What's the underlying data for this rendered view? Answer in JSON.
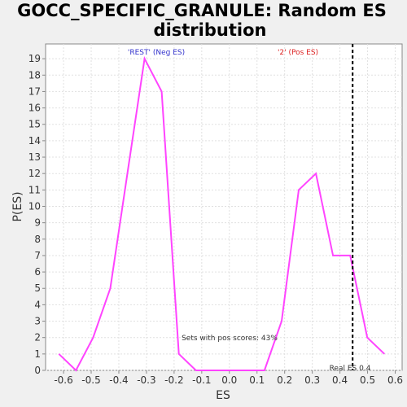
{
  "chart_data": {
    "type": "line",
    "title_lines": [
      "GOCC_SPECIFIC_GRANULE: Random ES",
      "distribution"
    ],
    "xlabel": "ES",
    "ylabel": "P(ES)",
    "xlim": [
      -0.665,
      0.625
    ],
    "ylim": [
      0,
      19.9
    ],
    "x_ticks": [
      -0.6,
      -0.5,
      -0.4,
      -0.3,
      -0.2,
      -0.1,
      0.0,
      0.1,
      0.2,
      0.3,
      0.4,
      0.5,
      0.6
    ],
    "x_tick_labels": [
      "-0.6",
      "-0.5",
      "-0.4",
      "-0.3",
      "-0.2",
      "-0.1",
      "0.0",
      "0.1",
      "0.2",
      "0.3",
      "0.4",
      "0.5",
      "0.6"
    ],
    "y_ticks": [
      0,
      1,
      2,
      3,
      4,
      5,
      6,
      7,
      8,
      9,
      10,
      11,
      12,
      13,
      14,
      15,
      16,
      17,
      18,
      19
    ],
    "grid": true,
    "series": [
      {
        "color": "#ff44ff",
        "x": [
          -0.617,
          -0.555,
          -0.493,
          -0.431,
          -0.369,
          -0.307,
          -0.245,
          -0.183,
          -0.121,
          -0.059,
          0.003,
          0.065,
          0.127,
          0.189,
          0.251,
          0.313,
          0.375,
          0.437,
          0.499,
          0.561
        ],
        "y": [
          1,
          0,
          2,
          5,
          12,
          19,
          17,
          1,
          0,
          0,
          0,
          0,
          0,
          3,
          11,
          12,
          7,
          7,
          2,
          1
        ]
      }
    ],
    "real_es": {
      "x": 0.446,
      "label": "Real ES 0.4"
    },
    "annotations": {
      "neg_label": "'REST' (Neg ES)",
      "neg_color": "#3333cc",
      "pos_label": "'2' (Pos ES)",
      "pos_color": "#dd2222",
      "pos_scores": "Sets with pos scores: 43%"
    },
    "colors": {
      "plot_bg": "#ffffff",
      "page_bg": "#f0f0f0",
      "grid": "#e0e0e0",
      "axis": "#888888"
    }
  }
}
